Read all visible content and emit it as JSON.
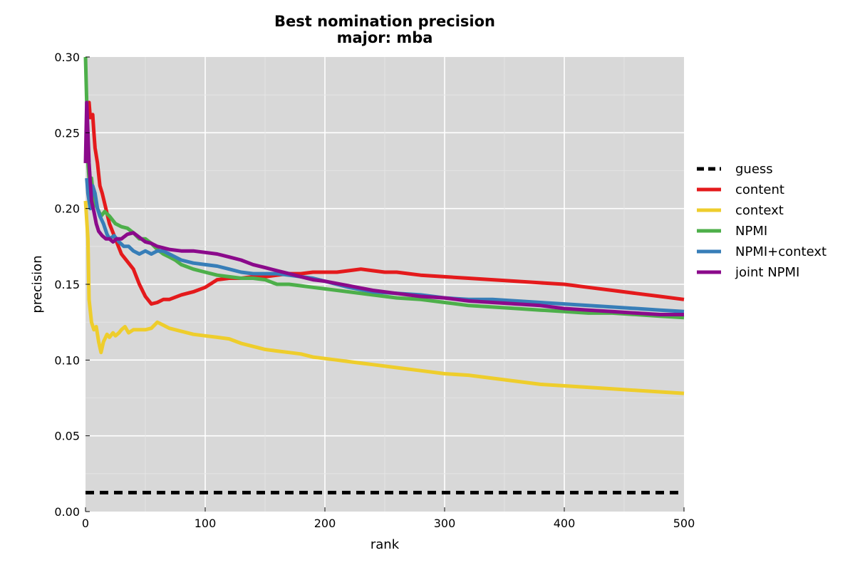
{
  "chart_data": {
    "type": "line",
    "title": "Best nomination precision",
    "subtitle": "major: mba",
    "xlabel": "rank",
    "ylabel": "precision",
    "xlim": [
      0,
      500
    ],
    "ylim": [
      0,
      0.3
    ],
    "xticks": [
      0,
      100,
      200,
      300,
      400,
      500
    ],
    "xtick_labels": [
      "0",
      "100",
      "200",
      "300",
      "400",
      "500"
    ],
    "yticks": [
      0,
      0.05,
      0.1,
      0.15,
      0.2,
      0.25,
      0.3
    ],
    "ytick_labels": [
      "0.00",
      "0.05",
      "0.10",
      "0.15",
      "0.20",
      "0.25",
      "0.30"
    ],
    "grid": true,
    "background": "#d8d8d8",
    "legend_position": "right",
    "series": [
      {
        "name": "guess",
        "color": "#000000",
        "dashed": true,
        "x": [
          0,
          500
        ],
        "y": [
          0.0125,
          0.0125
        ]
      },
      {
        "name": "content",
        "color": "#e41a1c",
        "dashed": false,
        "x": [
          1,
          3,
          4,
          6,
          7,
          8,
          10,
          12,
          14,
          17,
          20,
          25,
          30,
          35,
          40,
          45,
          50,
          55,
          60,
          65,
          70,
          80,
          90,
          100,
          110,
          120,
          130,
          140,
          150,
          160,
          170,
          180,
          190,
          200,
          210,
          220,
          230,
          240,
          250,
          260,
          270,
          280,
          300,
          320,
          340,
          360,
          380,
          400,
          420,
          440,
          460,
          480,
          500
        ],
        "y": [
          0.255,
          0.27,
          0.26,
          0.262,
          0.25,
          0.24,
          0.23,
          0.215,
          0.21,
          0.2,
          0.19,
          0.18,
          0.17,
          0.165,
          0.16,
          0.15,
          0.142,
          0.137,
          0.138,
          0.14,
          0.14,
          0.143,
          0.145,
          0.148,
          0.153,
          0.154,
          0.154,
          0.155,
          0.155,
          0.156,
          0.157,
          0.157,
          0.158,
          0.158,
          0.158,
          0.159,
          0.16,
          0.159,
          0.158,
          0.158,
          0.157,
          0.156,
          0.155,
          0.154,
          0.153,
          0.152,
          0.151,
          0.15,
          0.148,
          0.146,
          0.144,
          0.142,
          0.14
        ]
      },
      {
        "name": "context",
        "color": "#eecd2c",
        "dashed": false,
        "x": [
          0,
          2,
          3,
          5,
          7,
          9,
          11,
          13,
          15,
          18,
          20,
          23,
          25,
          28,
          30,
          33,
          36,
          40,
          45,
          50,
          55,
          60,
          65,
          70,
          80,
          90,
          100,
          110,
          120,
          130,
          140,
          150,
          160,
          170,
          180,
          190,
          200,
          210,
          220,
          240,
          260,
          280,
          300,
          320,
          340,
          360,
          380,
          400,
          420,
          440,
          460,
          480,
          500
        ],
        "y": [
          0.205,
          0.18,
          0.14,
          0.125,
          0.12,
          0.122,
          0.112,
          0.105,
          0.112,
          0.117,
          0.115,
          0.118,
          0.116,
          0.118,
          0.12,
          0.122,
          0.118,
          0.12,
          0.12,
          0.12,
          0.121,
          0.125,
          0.123,
          0.121,
          0.119,
          0.117,
          0.116,
          0.115,
          0.114,
          0.111,
          0.109,
          0.107,
          0.106,
          0.105,
          0.104,
          0.102,
          0.101,
          0.1,
          0.099,
          0.097,
          0.095,
          0.093,
          0.091,
          0.09,
          0.088,
          0.086,
          0.084,
          0.083,
          0.082,
          0.081,
          0.08,
          0.079,
          0.078
        ]
      },
      {
        "name": "NPMI",
        "color": "#4daf4a",
        "dashed": false,
        "x": [
          0,
          1,
          2,
          3,
          5,
          7,
          10,
          13,
          16,
          20,
          25,
          30,
          35,
          40,
          45,
          50,
          55,
          60,
          65,
          70,
          75,
          80,
          90,
          100,
          110,
          120,
          130,
          140,
          150,
          160,
          170,
          180,
          190,
          200,
          220,
          240,
          260,
          280,
          300,
          320,
          340,
          360,
          380,
          400,
          420,
          440,
          460,
          480,
          500
        ],
        "y": [
          0.3,
          0.27,
          0.23,
          0.22,
          0.22,
          0.205,
          0.2,
          0.195,
          0.198,
          0.195,
          0.19,
          0.188,
          0.187,
          0.184,
          0.18,
          0.18,
          0.177,
          0.173,
          0.17,
          0.168,
          0.166,
          0.163,
          0.16,
          0.158,
          0.156,
          0.155,
          0.154,
          0.154,
          0.153,
          0.15,
          0.15,
          0.149,
          0.148,
          0.147,
          0.145,
          0.143,
          0.141,
          0.14,
          0.138,
          0.136,
          0.135,
          0.134,
          0.133,
          0.132,
          0.131,
          0.131,
          0.13,
          0.129,
          0.128
        ]
      },
      {
        "name": "NPMI+context",
        "color": "#377eb8",
        "dashed": false,
        "x": [
          1,
          2,
          4,
          6,
          8,
          10,
          12,
          15,
          18,
          20,
          24,
          28,
          32,
          36,
          40,
          45,
          50,
          55,
          60,
          65,
          70,
          75,
          80,
          90,
          100,
          110,
          120,
          130,
          140,
          150,
          160,
          170,
          180,
          190,
          200,
          220,
          240,
          260,
          280,
          300,
          320,
          340,
          360,
          380,
          400,
          420,
          440,
          460,
          480,
          500
        ],
        "y": [
          0.22,
          0.21,
          0.2,
          0.215,
          0.21,
          0.2,
          0.195,
          0.19,
          0.183,
          0.18,
          0.182,
          0.178,
          0.175,
          0.175,
          0.172,
          0.17,
          0.172,
          0.17,
          0.172,
          0.172,
          0.17,
          0.168,
          0.166,
          0.164,
          0.163,
          0.162,
          0.16,
          0.158,
          0.157,
          0.157,
          0.157,
          0.156,
          0.155,
          0.154,
          0.152,
          0.148,
          0.145,
          0.144,
          0.143,
          0.141,
          0.14,
          0.14,
          0.139,
          0.138,
          0.137,
          0.136,
          0.135,
          0.134,
          0.133,
          0.132
        ]
      },
      {
        "name": "joint NPMI",
        "color": "#8b0a8b",
        "dashed": false,
        "x": [
          0,
          1,
          2,
          3,
          5,
          7,
          9,
          11,
          14,
          17,
          20,
          23,
          26,
          30,
          35,
          40,
          45,
          50,
          55,
          60,
          70,
          80,
          90,
          100,
          110,
          120,
          130,
          140,
          150,
          160,
          170,
          180,
          190,
          200,
          220,
          240,
          260,
          280,
          300,
          320,
          340,
          360,
          380,
          400,
          420,
          440,
          460,
          480,
          500
        ],
        "y": [
          0.23,
          0.27,
          0.25,
          0.23,
          0.205,
          0.198,
          0.19,
          0.185,
          0.182,
          0.18,
          0.18,
          0.178,
          0.18,
          0.18,
          0.183,
          0.184,
          0.181,
          0.178,
          0.177,
          0.175,
          0.173,
          0.172,
          0.172,
          0.171,
          0.17,
          0.168,
          0.166,
          0.163,
          0.161,
          0.159,
          0.157,
          0.155,
          0.153,
          0.152,
          0.149,
          0.146,
          0.144,
          0.142,
          0.141,
          0.139,
          0.138,
          0.137,
          0.136,
          0.134,
          0.133,
          0.132,
          0.131,
          0.13,
          0.13
        ]
      }
    ]
  }
}
